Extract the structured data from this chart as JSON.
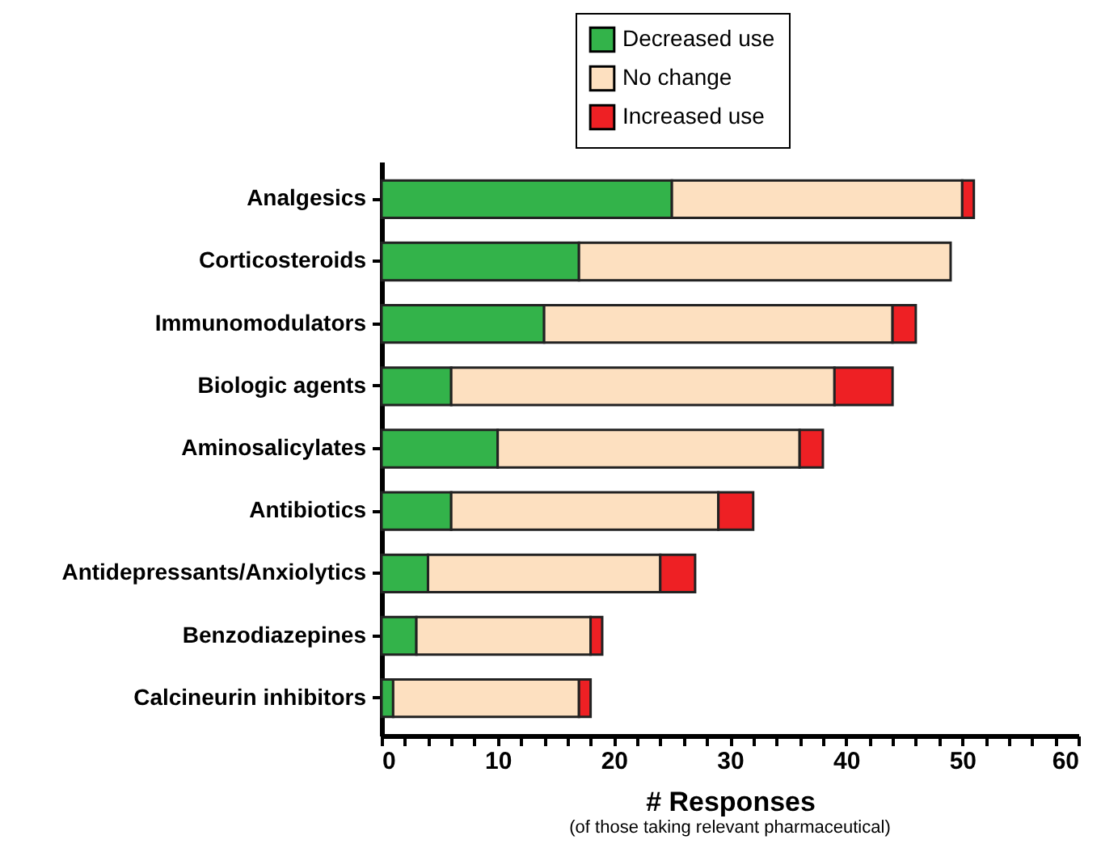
{
  "chart_data": {
    "type": "bar",
    "orientation": "horizontal",
    "stacked": true,
    "xlabel": "# Responses",
    "annotations": [
      "(of those taking relevant pharmaceutical)"
    ],
    "categories": [
      "Analgesics",
      "Corticosteroids",
      "Immunomodulators",
      "Biologic agents",
      "Aminosalicylates",
      "Antibiotics",
      "Antidepressants/Anxiolytics",
      "Benzodiazepines",
      "Calcineurin inhibitors"
    ],
    "series": [
      {
        "name": "Decreased use",
        "color": "#33b34a",
        "values": [
          25,
          17,
          14,
          6,
          10,
          6,
          4,
          3,
          1
        ]
      },
      {
        "name": "No change",
        "color": "#fde0c0",
        "values": [
          25,
          32,
          30,
          33,
          26,
          23,
          20,
          15,
          16
        ]
      },
      {
        "name": "Increased use",
        "color": "#ee2024",
        "values": [
          1,
          null,
          2,
          5,
          2,
          3,
          3,
          1,
          1
        ]
      }
    ],
    "xlim": [
      0,
      60
    ],
    "xticks": [
      0,
      {
        "value": 2,
        "label": null
      },
      {
        "value": 4,
        "label": null
      },
      {
        "value": 6,
        "label": null
      },
      {
        "value": 8,
        "label": null
      },
      10,
      {
        "value": 12,
        "label": null
      },
      {
        "value": 14,
        "label": null
      },
      {
        "value": 16,
        "label": null
      },
      {
        "value": 18,
        "label": null
      },
      20,
      {
        "value": 22,
        "label": null
      },
      {
        "value": 24,
        "label": null
      },
      {
        "value": 26,
        "label": null
      },
      {
        "value": 28,
        "label": null
      },
      30,
      {
        "value": 32,
        "label": null
      },
      {
        "value": 34,
        "label": null
      },
      {
        "value": 36,
        "label": null
      },
      {
        "value": 38,
        "label": null
      },
      40,
      {
        "value": 42,
        "label": null
      },
      {
        "value": 44,
        "label": null
      },
      {
        "value": 46,
        "label": null
      },
      {
        "value": 48,
        "label": null
      },
      50,
      {
        "value": 52,
        "label": null
      },
      {
        "value": 54,
        "label": null
      },
      {
        "value": 56,
        "label": null
      },
      {
        "value": 58,
        "label": null
      },
      60
    ],
    "grid": false,
    "legend": "top"
  }
}
